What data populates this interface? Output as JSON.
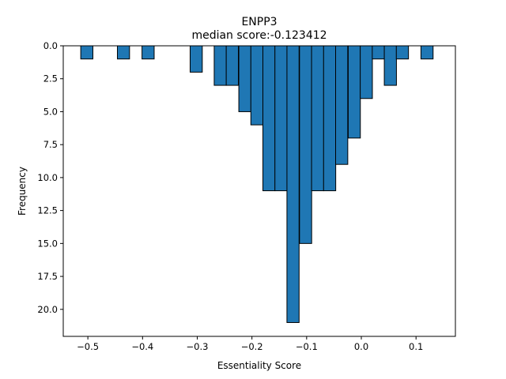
{
  "chart_data": {
    "type": "bar",
    "title": "ENPP3",
    "subtitle": "median score:-0.123412",
    "xlabel": "Essentiality Score",
    "ylabel": "Frequency",
    "xlim": [
      -0.545,
      0.172
    ],
    "ylim": [
      22.05,
      0
    ],
    "y_inverted": true,
    "grid": false,
    "bin_width": 0.0222,
    "x_ticks": [
      -0.5,
      -0.4,
      -0.3,
      -0.2,
      -0.1,
      0.0,
      0.1
    ],
    "x_tick_labels": [
      "−0.5",
      "−0.4",
      "−0.3",
      "−0.2",
      "−0.1",
      "0.0",
      "0.1"
    ],
    "y_ticks": [
      0,
      2.5,
      5,
      7.5,
      10,
      12.5,
      15,
      17.5,
      20
    ],
    "y_tick_labels": [
      "0.0",
      "2.5",
      "5.0",
      "7.5",
      "10.0",
      "12.5",
      "15.0",
      "17.5",
      "20.0"
    ],
    "bins": [
      {
        "x": -0.513,
        "value": 1
      },
      {
        "x": -0.446,
        "value": 1
      },
      {
        "x": -0.401,
        "value": 1
      },
      {
        "x": -0.313,
        "value": 2
      },
      {
        "x": -0.269,
        "value": 3
      },
      {
        "x": -0.247,
        "value": 3
      },
      {
        "x": -0.224,
        "value": 5
      },
      {
        "x": -0.202,
        "value": 6
      },
      {
        "x": -0.18,
        "value": 11
      },
      {
        "x": -0.158,
        "value": 11
      },
      {
        "x": -0.136,
        "value": 21
      },
      {
        "x": -0.113,
        "value": 15
      },
      {
        "x": -0.091,
        "value": 11
      },
      {
        "x": -0.069,
        "value": 11
      },
      {
        "x": -0.047,
        "value": 9
      },
      {
        "x": -0.024,
        "value": 7
      },
      {
        "x": -0.002,
        "value": 4
      },
      {
        "x": 0.02,
        "value": 1
      },
      {
        "x": 0.042,
        "value": 3
      },
      {
        "x": 0.064,
        "value": 1
      },
      {
        "x": 0.109,
        "value": 1
      }
    ]
  }
}
